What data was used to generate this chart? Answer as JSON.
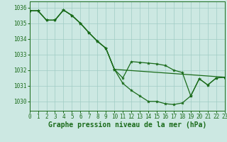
{
  "title": "Graphe pression niveau de la mer (hPa)",
  "bg_color": "#cce8e2",
  "line_color": "#1a6b1a",
  "grid_color": "#a0ccc4",
  "xlim": [
    0,
    23
  ],
  "ylim": [
    1029.4,
    1036.4
  ],
  "yticks": [
    1030,
    1031,
    1032,
    1033,
    1034,
    1035,
    1036
  ],
  "xticks": [
    0,
    1,
    2,
    3,
    4,
    5,
    6,
    7,
    8,
    9,
    10,
    11,
    12,
    13,
    14,
    15,
    16,
    17,
    18,
    19,
    20,
    21,
    22,
    23
  ],
  "line1_x": [
    0,
    1,
    2,
    3,
    4,
    5,
    6,
    7,
    8,
    9,
    10,
    11,
    12,
    13,
    14,
    15,
    16,
    17,
    18,
    19,
    20,
    21,
    22,
    23
  ],
  "line1_y": [
    1035.8,
    1035.8,
    1035.2,
    1035.2,
    1035.85,
    1035.5,
    1035.0,
    1034.4,
    1033.85,
    1033.4,
    1032.05,
    1031.15,
    1030.7,
    1030.35,
    1030.0,
    1030.0,
    1029.85,
    1029.8,
    1029.9,
    1030.35,
    1031.45,
    1031.05,
    1031.5,
    1031.55
  ],
  "line2_x": [
    0,
    1,
    2,
    3,
    4,
    5,
    6,
    7,
    8,
    9,
    10,
    11,
    12,
    13,
    14,
    15,
    16,
    17,
    18,
    19,
    20,
    21,
    22,
    23
  ],
  "line2_y": [
    1035.8,
    1035.8,
    1035.2,
    1035.2,
    1035.85,
    1035.5,
    1035.0,
    1034.4,
    1033.85,
    1033.4,
    1032.05,
    1031.5,
    1032.55,
    1032.5,
    1032.45,
    1032.4,
    1032.3,
    1032.0,
    1031.85,
    1030.35,
    1031.45,
    1031.05,
    1031.5,
    1031.55
  ],
  "line3_x": [
    0,
    1,
    2,
    3,
    4,
    5,
    6,
    7,
    8,
    9,
    10,
    23
  ],
  "line3_y": [
    1035.8,
    1035.8,
    1035.2,
    1035.2,
    1035.85,
    1035.5,
    1035.0,
    1034.4,
    1033.85,
    1033.4,
    1032.05,
    1031.55
  ],
  "tick_fontsize": 5.5,
  "title_fontsize": 7,
  "lw": 0.9,
  "ms": 3.0
}
